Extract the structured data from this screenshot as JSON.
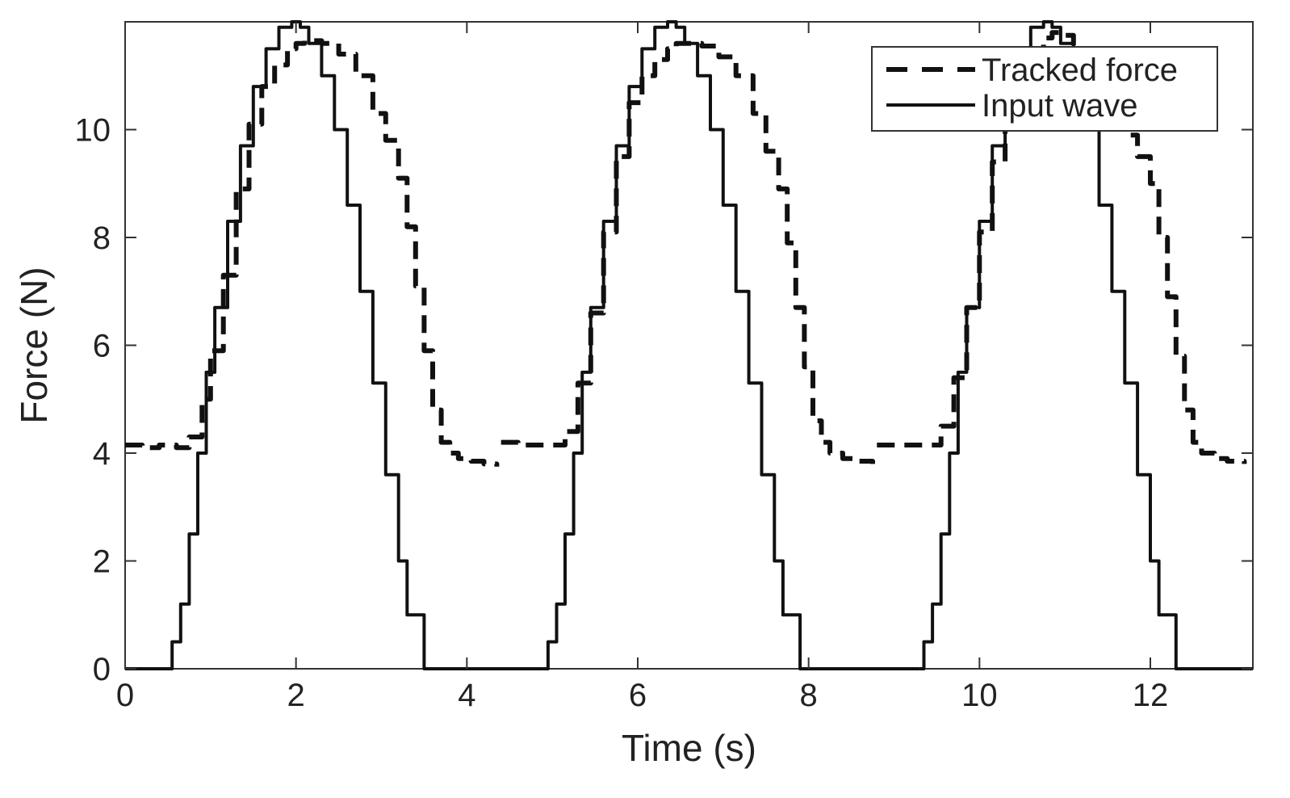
{
  "chart_data": {
    "type": "line",
    "title": "",
    "xlabel": "Time (s)",
    "ylabel": "Force (N)",
    "xlim": [
      0,
      13.2
    ],
    "ylim": [
      0,
      12
    ],
    "xticks": [
      0,
      2,
      4,
      6,
      8,
      10,
      12
    ],
    "yticks": [
      0,
      2,
      4,
      6,
      8,
      10
    ],
    "grid": false,
    "legend_position": "top-right",
    "colors": {
      "line": "#111111",
      "axis": "#333333"
    },
    "series": [
      {
        "name": "Tracked force",
        "style": "dashed",
        "segments": [
          {
            "x": [
              0.0,
              0.2,
              0.4,
              0.6,
              0.75,
              0.9,
              1.0,
              1.15,
              1.3,
              1.45,
              1.6,
              1.75,
              1.9,
              2.0,
              2.1,
              2.3,
              2.5,
              2.7,
              2.9,
              3.05,
              3.2,
              3.3,
              3.4,
              3.5,
              3.6,
              3.7,
              3.8,
              3.9,
              4.05,
              4.2,
              4.35
            ],
            "y": [
              4.15,
              4.1,
              4.15,
              4.1,
              4.3,
              5.0,
              5.9,
              7.3,
              8.9,
              10.1,
              10.8,
              11.2,
              11.5,
              11.6,
              11.65,
              11.6,
              11.4,
              11.0,
              10.3,
              9.8,
              9.1,
              8.2,
              7.1,
              5.9,
              4.8,
              4.2,
              4.0,
              3.9,
              3.85,
              3.8,
              3.75
            ]
          },
          {
            "x": [
              4.4,
              4.6,
              4.8,
              5.0,
              5.15,
              5.3,
              5.45,
              5.6,
              5.75,
              5.9,
              6.05,
              6.2,
              6.35,
              6.45,
              6.55,
              6.75,
              6.95,
              7.15,
              7.35,
              7.5,
              7.65,
              7.75,
              7.85,
              7.95,
              8.05,
              8.15,
              8.25,
              8.4,
              8.55,
              8.75
            ],
            "y": [
              4.2,
              4.15,
              4.15,
              4.15,
              4.4,
              5.3,
              6.6,
              8.1,
              9.5,
              10.5,
              11.0,
              11.3,
              11.5,
              11.6,
              11.6,
              11.55,
              11.35,
              11.0,
              10.3,
              9.6,
              8.9,
              7.9,
              6.7,
              5.6,
              4.6,
              4.2,
              4.0,
              3.9,
              3.85,
              3.8
            ]
          },
          {
            "x": [
              8.8,
              9.0,
              9.2,
              9.4,
              9.55,
              9.7,
              9.85,
              10.0,
              10.15,
              10.3,
              10.45,
              10.6,
              10.75,
              10.85,
              10.95,
              11.1,
              11.3,
              11.5,
              11.7,
              11.85,
              12.0,
              12.1,
              12.2,
              12.3,
              12.4,
              12.5,
              12.6,
              12.75,
              12.9,
              13.1
            ],
            "y": [
              4.15,
              4.15,
              4.15,
              4.15,
              4.5,
              5.4,
              6.7,
              8.1,
              9.4,
              10.5,
              11.1,
              11.5,
              11.7,
              11.8,
              11.75,
              11.5,
              11.0,
              10.4,
              9.9,
              9.5,
              9.0,
              8.0,
              6.9,
              5.8,
              4.8,
              4.2,
              4.0,
              3.9,
              3.85,
              3.8
            ]
          }
        ]
      },
      {
        "name": "Input wave",
        "style": "solid",
        "segments": [
          {
            "x": [
              0.0,
              0.5,
              0.55,
              0.65,
              0.75,
              0.85,
              0.95,
              1.05,
              1.2,
              1.35,
              1.5,
              1.65,
              1.8,
              1.95,
              2.05,
              2.15,
              2.3,
              2.45,
              2.6,
              2.75,
              2.9,
              3.05,
              3.2,
              3.3,
              3.4,
              3.5,
              3.6,
              3.65,
              4.9
            ],
            "y": [
              0.0,
              0.0,
              0.5,
              1.2,
              2.5,
              4.0,
              5.5,
              6.7,
              8.3,
              9.7,
              10.8,
              11.5,
              11.9,
              12.0,
              11.9,
              11.6,
              11.0,
              10.0,
              8.6,
              7.0,
              5.3,
              3.6,
              2.0,
              1.0,
              1.0,
              0.0,
              0.0,
              0.0,
              0.0
            ]
          },
          {
            "x": [
              4.9,
              4.95,
              5.05,
              5.15,
              5.25,
              5.35,
              5.45,
              5.6,
              5.75,
              5.9,
              6.05,
              6.2,
              6.35,
              6.45,
              6.55,
              6.7,
              6.85,
              7.0,
              7.15,
              7.3,
              7.45,
              7.6,
              7.7,
              7.8,
              7.9,
              8.0,
              8.05,
              9.3
            ],
            "y": [
              0.0,
              0.5,
              1.2,
              2.5,
              4.0,
              5.5,
              6.7,
              8.3,
              9.7,
              10.8,
              11.5,
              11.9,
              12.0,
              11.9,
              11.6,
              11.0,
              10.0,
              8.6,
              7.0,
              5.3,
              3.6,
              2.0,
              1.0,
              1.0,
              0.0,
              0.0,
              0.0,
              0.0
            ]
          },
          {
            "x": [
              9.3,
              9.35,
              9.45,
              9.55,
              9.65,
              9.75,
              9.85,
              10.0,
              10.15,
              10.3,
              10.45,
              10.6,
              10.75,
              10.85,
              10.95,
              11.1,
              11.25,
              11.4,
              11.55,
              11.7,
              11.85,
              12.0,
              12.1,
              12.2,
              12.3,
              12.4,
              12.45,
              13.2
            ],
            "y": [
              0.0,
              0.5,
              1.2,
              2.5,
              4.0,
              5.5,
              6.7,
              8.3,
              9.7,
              10.8,
              11.5,
              11.9,
              12.0,
              11.9,
              11.6,
              11.0,
              10.0,
              8.6,
              7.0,
              5.3,
              3.6,
              2.0,
              1.0,
              1.0,
              0.0,
              0.0,
              0.0,
              0.0
            ]
          }
        ]
      }
    ]
  }
}
